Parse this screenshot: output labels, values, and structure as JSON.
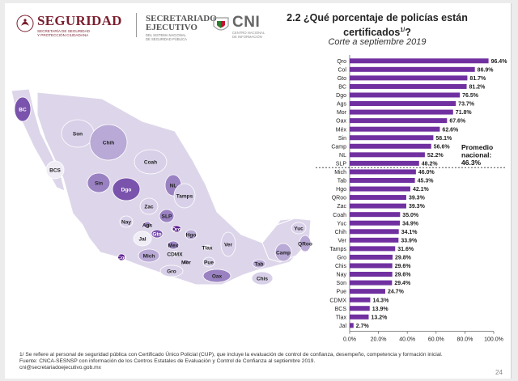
{
  "header": {
    "seguridad_logo": {
      "name": "SEGURIDAD",
      "sub_lines": [
        "SECRETARÍA DE SEGURIDAD",
        "Y PROTECCIÓN CIUDADANA"
      ]
    },
    "secretariado_logo": {
      "name_lines": [
        "SECRETARIADO",
        "EJECUTIVO"
      ],
      "sub_lines": [
        "DEL SISTEMA NACIONAL",
        "DE SEGURIDAD PÚBLICA"
      ]
    },
    "cni_logo": {
      "name": "CNI",
      "sub_lines": [
        "CENTRO NACIONAL",
        "DE INFORMACIÓN"
      ]
    },
    "title_line1": "2.2 ¿Qué porcentaje de policías están",
    "title_line2": "certificados",
    "title_sup": "1/",
    "title_end": "?",
    "subtitle": "Corte a septiembre 2019"
  },
  "map": {
    "state_labels": [
      {
        "abbr": "BC",
        "level": 4
      },
      {
        "abbr": "Son",
        "level": 1
      },
      {
        "abbr": "Chih",
        "level": 2
      },
      {
        "abbr": "BCS",
        "level": 0
      },
      {
        "abbr": "Coah",
        "level": 1
      },
      {
        "abbr": "Sin",
        "level": 3
      },
      {
        "abbr": "Dgo",
        "level": 4
      },
      {
        "abbr": "NL",
        "level": 3
      },
      {
        "abbr": "Tamps",
        "level": 1
      },
      {
        "abbr": "Zac",
        "level": 1
      },
      {
        "abbr": "SLP",
        "level": 3
      },
      {
        "abbr": "Nay",
        "level": 1
      },
      {
        "abbr": "Ags",
        "level": 3
      },
      {
        "abbr": "Gto",
        "level": 4
      },
      {
        "abbr": "Qro",
        "level": 5
      },
      {
        "abbr": "Hgo",
        "level": 2
      },
      {
        "abbr": "Jal",
        "level": 0
      },
      {
        "abbr": "Mex",
        "level": 3
      },
      {
        "abbr": "Tlax",
        "level": 0
      },
      {
        "abbr": "Ver",
        "level": 1
      },
      {
        "abbr": "Col",
        "level": 5
      },
      {
        "abbr": "Mich",
        "level": 2
      },
      {
        "abbr": "CDMX",
        "level": 0
      },
      {
        "abbr": "Mor",
        "level": 3
      },
      {
        "abbr": "Pue",
        "level": 1
      },
      {
        "abbr": "Gro",
        "level": 1
      },
      {
        "abbr": "Oax",
        "level": 3
      },
      {
        "abbr": "Tab",
        "level": 2
      },
      {
        "abbr": "Chis",
        "level": 1
      },
      {
        "abbr": "Camp",
        "level": 2
      },
      {
        "abbr": "Yuc",
        "level": 1
      },
      {
        "abbr": "QRoo",
        "level": 2
      }
    ],
    "level_colors": [
      "#f0edf6",
      "#d8d0e8",
      "#b9a9d6",
      "#9a82c2",
      "#7a53ac",
      "#5b1f8e"
    ]
  },
  "chart_data": {
    "type": "bar",
    "orientation": "horizontal",
    "categories": [
      "Qro",
      "Col",
      "Gto",
      "BC",
      "Dgo",
      "Ags",
      "Mor",
      "Oax",
      "Méx",
      "Sin",
      "Camp",
      "NL",
      "SLP",
      "Mich",
      "Tab",
      "Hgo",
      "QRoo",
      "Zac",
      "Coah",
      "Yuc",
      "Chih",
      "Ver",
      "Tamps",
      "Gro",
      "Chis",
      "Nay",
      "Son",
      "Pue",
      "CDMX",
      "BCS",
      "Tlax",
      "Jal"
    ],
    "values": [
      96.4,
      86.9,
      81.7,
      81.2,
      76.5,
      73.7,
      71.8,
      67.6,
      62.6,
      58.1,
      56.6,
      52.2,
      48.2,
      46.0,
      45.3,
      42.1,
      39.3,
      39.3,
      35.0,
      34.9,
      34.1,
      33.9,
      31.6,
      29.8,
      29.6,
      29.6,
      29.4,
      24.7,
      14.3,
      13.9,
      13.2,
      2.7
    ],
    "value_labels": [
      "96.4%",
      "86.9%",
      "81.7%",
      "81.2%",
      "76.5%",
      "73.7%",
      "71.8%",
      "67.6%",
      "62.6%",
      "58.1%",
      "56.6%",
      "52.2%",
      "48.2%",
      "46.0%",
      "45.3%",
      "42.1%",
      "39.3%",
      "39.3%",
      "35.0%",
      "34.9%",
      "34.1%",
      "33.9%",
      "31.6%",
      "29.8%",
      "29.6%",
      "29.6%",
      "29.4%",
      "24.7%",
      "14.3%",
      "13.9%",
      "13.2%",
      "2.7%"
    ],
    "xlim": [
      0,
      100
    ],
    "xticks": [
      0,
      20,
      40,
      60,
      80,
      100
    ],
    "xtick_labels": [
      "0.0%",
      "20.0%",
      "40.0%",
      "60.0%",
      "80.0%",
      "100.0%"
    ],
    "reference_value": 46.3,
    "reference_label_lines": [
      "Promedio",
      "nacional:",
      "46.3%"
    ],
    "bar_color": "#7030a0",
    "grid": false
  },
  "footnotes": [
    "1/ Se refiere al personal de seguridad pública con Certificado Único Policial (CUP), que incluye la evaluación de control de confianza, desempeño, competencia y formación inicial.",
    "Fuente: CNCA-SESNSP con información de los Centros Estatales de Evaluación y Control de Confianza al septiembre 2019.",
    "cni@secretariadoejecutivo.gob.mx"
  ],
  "page_number": "24"
}
